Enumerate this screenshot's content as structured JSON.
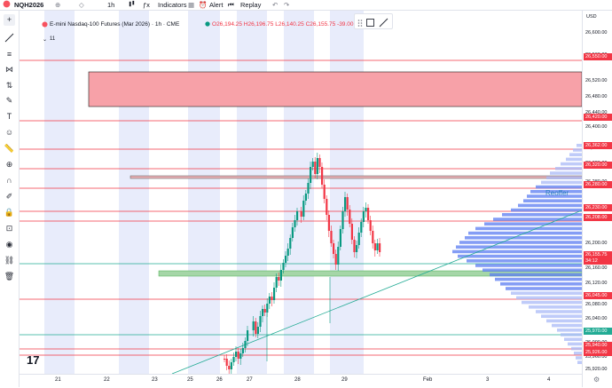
{
  "topbar": {
    "symbol": "NQH2026",
    "interval": "1h",
    "indicators": "Indicators",
    "alert": "Alert",
    "replay": "Replay",
    "currency": "USD"
  },
  "legend": {
    "title": "E-mini Nasdaq-100 Futures (Mar 2026) · 1h · CME",
    "open_label": "O",
    "open": "26,194.25",
    "high_label": "H",
    "high": "26,196.75",
    "low_label": "L",
    "low": "26,140.25",
    "close_label": "C",
    "close": "26,155.75",
    "change": "-39.00 (-0.15%)",
    "indicator_count": "11"
  },
  "volume_profile_label": "Reoffer",
  "price_axis": {
    "ticks": [
      "26,600.00",
      "26,560.00",
      "26,520.00",
      "26,480.00",
      "26,440.00",
      "26,400.00",
      "26,360.00",
      "26,320.00",
      "26,280.00",
      "26,240.00",
      "26,200.00",
      "26,160.00",
      "26,120.00",
      "26,080.00",
      "26,040.00",
      "26,000.00",
      "25,960.00",
      "25,920.00"
    ],
    "level_labels": [
      {
        "text": "26,550.00",
        "color": "#f23645"
      },
      {
        "text": "26,420.00",
        "color": "#f23645"
      },
      {
        "text": "26,362.00",
        "color": "#f23645"
      },
      {
        "text": "26,320.00",
        "color": "#f23645"
      },
      {
        "text": "26,280.00",
        "color": "#f23645"
      },
      {
        "text": "26,230.00",
        "color": "#f23645"
      },
      {
        "text": "26,208.00",
        "color": "#f23645"
      },
      {
        "text": "26,129.00",
        "color": "#22ab94"
      },
      {
        "text": "26,045.00",
        "color": "#f23645"
      },
      {
        "text": "25,970.00",
        "color": "#22ab94"
      },
      {
        "text": "25,940.00",
        "color": "#f23645"
      },
      {
        "text": "25,926.00",
        "color": "#f23645"
      }
    ],
    "current_price": "26,155.75",
    "countdown": "34:12"
  },
  "time_axis": [
    "21",
    "22",
    "23",
    "25",
    "26",
    "27",
    "28",
    "29",
    "Feb",
    "3",
    "4"
  ],
  "colors": {
    "up": "#089981",
    "down": "#f23645",
    "level_red": "#f23645",
    "level_green": "#22ab94",
    "zone_red": "#f7a1a8",
    "zone_green": "#a5d6a7",
    "session_shade": "#e8ecfb",
    "profile": "#5b7cf2"
  }
}
